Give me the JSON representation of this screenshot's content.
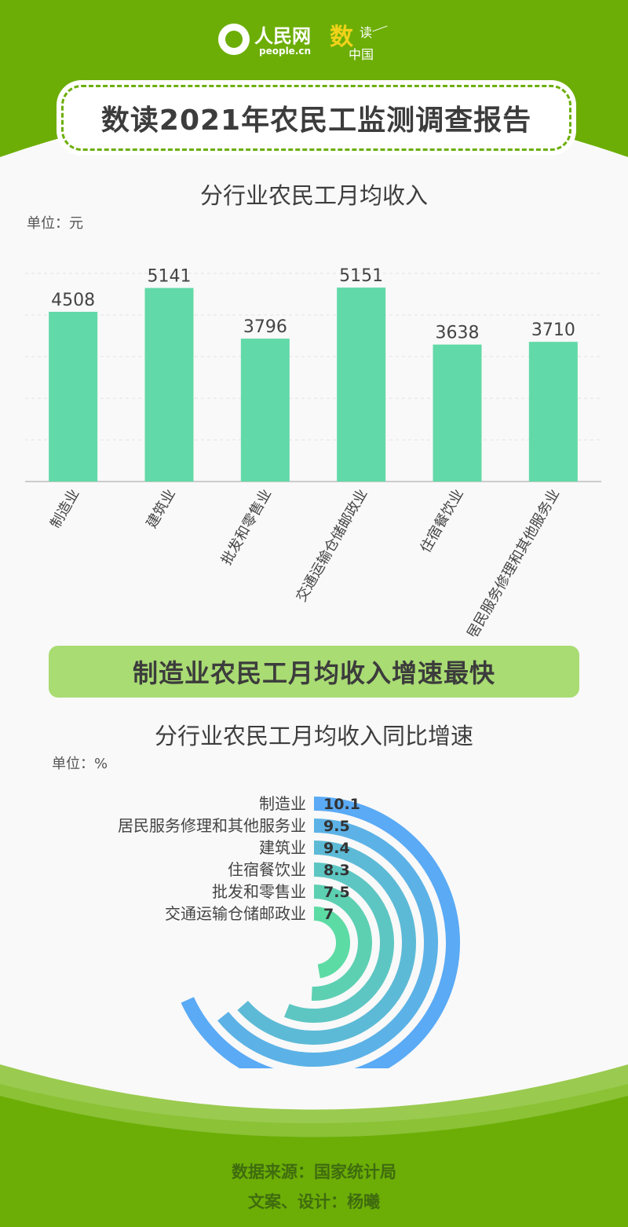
{
  "header": {
    "logo_cn": "人民网",
    "logo_en": "people.cn",
    "logo_shu": "数",
    "logo_du": "读",
    "logo_zhongguo": "中国",
    "title": "数读2021年农民工监测调查报告"
  },
  "colors": {
    "brand_green": "#6cae06",
    "bar": "#62d9a8",
    "banner": "#a9dc73",
    "radial_outer": "#5aaaf5",
    "radial_inner": "#5ddba5"
  },
  "chart_data": [
    {
      "type": "bar",
      "title": "分行业农民工月均收入",
      "unit_label": "单位：元",
      "categories": [
        "制造业",
        "建筑业",
        "批发和零售业",
        "交通运输仓储邮政业",
        "住宿餐饮业",
        "居民服务修理和其他服务业"
      ],
      "values": [
        4508,
        5141,
        3796,
        5151,
        3638,
        3710
      ],
      "ylim": [
        0,
        5800
      ],
      "grid": true,
      "legend": "none"
    },
    {
      "type": "radial_bar",
      "title": "分行业农民工月均收入同比增速",
      "unit_label": "单位：%",
      "categories": [
        "制造业",
        "居民服务修理和其他服务业",
        "建筑业",
        "住宿餐饮业",
        "批发和零售业",
        "交通运输仓储邮政业"
      ],
      "values": [
        10.1,
        9.5,
        9.4,
        8.3,
        7.5,
        7
      ],
      "value_labels": [
        "10.1",
        "9.5",
        "9.4",
        "8.3",
        "7.5",
        "7"
      ],
      "legend": "none"
    }
  ],
  "banner": {
    "text": "制造业农民工月均收入增速最快"
  },
  "footer": {
    "source": "数据来源：国家统计局",
    "credits": "文案、设计：杨曦"
  }
}
